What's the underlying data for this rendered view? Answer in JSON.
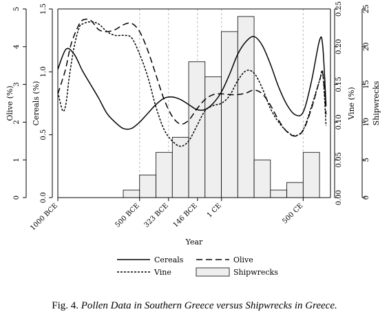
{
  "chart_data": {
    "type": "bar",
    "xlabel": "Year",
    "x_range": [
      -1000,
      667
    ],
    "x_ticks": [
      {
        "value": -1000,
        "label": "1000 BCE"
      },
      {
        "value": -500,
        "label": "500 BCE"
      },
      {
        "value": -323,
        "label": "323 BCE"
      },
      {
        "value": -146,
        "label": "146 BCE"
      },
      {
        "value": 1,
        "label": "1 CE"
      },
      {
        "value": 500,
        "label": "500 CE"
      }
    ],
    "axes": [
      {
        "id": "olive",
        "side": "left",
        "label": "Olive (%)",
        "range": [
          0,
          5
        ],
        "ticks": [
          "0",
          "1",
          "2",
          "3",
          "4",
          "5"
        ]
      },
      {
        "id": "cereals",
        "side": "left",
        "label": "Cereals (%)",
        "range": [
          0,
          1.5
        ],
        "ticks": [
          "0.0",
          "0.5",
          "1.0",
          "1.5"
        ]
      },
      {
        "id": "vine",
        "side": "right",
        "label": "Vine (%)",
        "range": [
          0,
          0.25
        ],
        "ticks": [
          "0.00",
          "0.05",
          "0.10",
          "0.15",
          "0.20",
          "0.25"
        ]
      },
      {
        "id": "shipwrecks",
        "side": "right",
        "label": "Shipwrecks",
        "range": [
          0,
          25
        ],
        "ticks": [
          "0",
          "5",
          "10",
          "15",
          "20",
          "25"
        ]
      }
    ],
    "shipwrecks": {
      "name": "Shipwrecks",
      "axis": "shipwrecks",
      "bin_edges": [
        -600,
        -500,
        -400,
        -300,
        -200,
        -100,
        0,
        100,
        200,
        300,
        400,
        500,
        600
      ],
      "values": [
        1,
        3,
        6,
        8,
        18,
        16,
        22,
        24,
        5,
        1,
        2,
        6
      ],
      "color": "#efefef"
    },
    "series": [
      {
        "name": "Cereals",
        "axis": "cereals",
        "style": "solid",
        "x": [
          -1000,
          -950,
          -900,
          -850,
          -800,
          -750,
          -700,
          -650,
          -600,
          -550,
          -500,
          -450,
          -400,
          -350,
          -300,
          -250,
          -200,
          -150,
          -100,
          -50,
          0,
          50,
          100,
          150,
          200,
          250,
          300,
          350,
          400,
          450,
          500,
          550,
          600,
          620,
          640
        ],
        "y": [
          1.02,
          1.18,
          1.14,
          1.01,
          0.9,
          0.79,
          0.67,
          0.6,
          0.55,
          0.55,
          0.6,
          0.67,
          0.74,
          0.79,
          0.8,
          0.78,
          0.74,
          0.7,
          0.7,
          0.75,
          0.84,
          0.98,
          1.14,
          1.24,
          1.28,
          1.21,
          1.06,
          0.88,
          0.74,
          0.66,
          0.68,
          0.92,
          1.25,
          1.2,
          0.73
        ]
      },
      {
        "name": "Olive",
        "axis": "olive",
        "style": "dashed",
        "x": [
          -1000,
          -970,
          -950,
          -920,
          -880,
          -850,
          -800,
          -750,
          -700,
          -650,
          -600,
          -550,
          -500,
          -450,
          -400,
          -350,
          -300,
          -250,
          -200,
          -150,
          -100,
          -50,
          0,
          50,
          100,
          150,
          200,
          250,
          300,
          350,
          400,
          450,
          500,
          550,
          600,
          620,
          640
        ],
        "y": [
          2.75,
          3.15,
          3.45,
          4.05,
          4.5,
          4.7,
          4.7,
          4.45,
          4.4,
          4.45,
          4.58,
          4.62,
          4.4,
          3.9,
          3.25,
          2.6,
          2.15,
          1.95,
          2.05,
          2.35,
          2.6,
          2.73,
          2.75,
          2.73,
          2.73,
          2.77,
          2.85,
          2.75,
          2.45,
          2.05,
          1.75,
          1.63,
          1.78,
          2.35,
          3.1,
          3.28,
          2.2
        ]
      },
      {
        "name": "Vine",
        "axis": "vine",
        "style": "dotted",
        "x": [
          -1000,
          -970,
          -950,
          -930,
          -900,
          -870,
          -850,
          -800,
          -750,
          -700,
          -650,
          -600,
          -550,
          -500,
          -450,
          -400,
          -350,
          -300,
          -250,
          -200,
          -150,
          -100,
          -50,
          0,
          50,
          100,
          150,
          200,
          250,
          300,
          350,
          400,
          450,
          500,
          550,
          600,
          620,
          640
        ],
        "y": [
          0.14,
          0.115,
          0.125,
          0.16,
          0.2,
          0.225,
          0.23,
          0.233,
          0.23,
          0.22,
          0.215,
          0.215,
          0.212,
          0.19,
          0.16,
          0.12,
          0.09,
          0.075,
          0.068,
          0.075,
          0.095,
          0.115,
          0.122,
          0.125,
          0.135,
          0.155,
          0.168,
          0.165,
          0.145,
          0.118,
          0.1,
          0.088,
          0.082,
          0.09,
          0.12,
          0.155,
          0.165,
          0.095
        ]
      }
    ],
    "legend": {
      "position": "bottom",
      "entries": [
        {
          "label": "Cereals",
          "style": "solid"
        },
        {
          "label": "Olive",
          "style": "dashed"
        },
        {
          "label": "Vine",
          "style": "dotted"
        },
        {
          "label": "Shipwrecks",
          "style": "bar"
        }
      ]
    },
    "grid": {
      "vertical_dashed_at": [
        -1000,
        -500,
        -323,
        -146,
        1,
        500
      ]
    }
  },
  "caption": {
    "prefix": "Fig. 4.",
    "title": "Pollen Data in Southern Greece versus Shipwrecks in Greece."
  }
}
